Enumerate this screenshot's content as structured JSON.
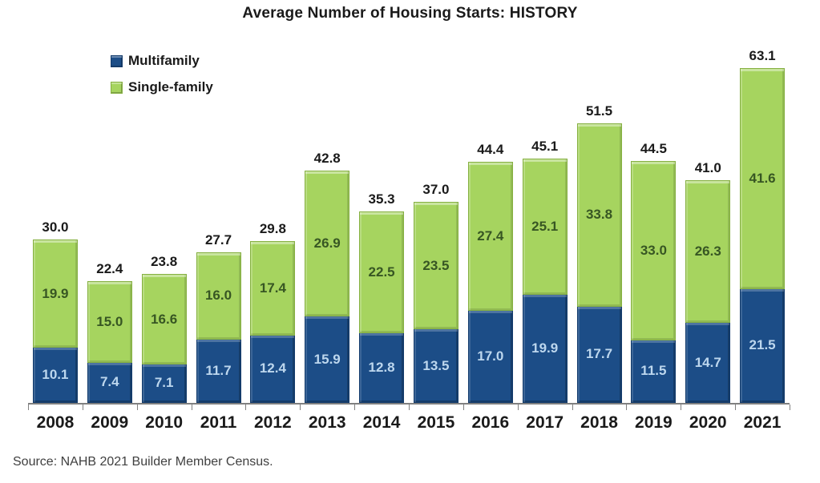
{
  "title": "Average Number of Housing Starts: HISTORY",
  "source_note": "Source: NAHB 2021 Builder Member Census.",
  "legend": {
    "items": [
      {
        "label": "Multifamily"
      },
      {
        "label": "Single-family"
      }
    ]
  },
  "colors": {
    "multifamily": "#1c4d87",
    "multifamily_dark": "#123a6b",
    "multifamily_label": "#bdd7ee",
    "singlefamily": "#a6d45f",
    "singlefamily_dark": "#85b040",
    "singlefamily_label": "#375623",
    "total_label": "#1a1a1a",
    "axis": "#808080",
    "source_text": "#404040"
  },
  "chart_data": {
    "type": "bar",
    "stacked": true,
    "title": "Average Number of Housing Starts: HISTORY",
    "xlabel": "",
    "ylabel": "",
    "grid": false,
    "legend_position": "top-left",
    "ylim": [
      0,
      65.3
    ],
    "categories": [
      "2008",
      "2009",
      "2010",
      "2011",
      "2012",
      "2013",
      "2014",
      "2015",
      "2016",
      "2017",
      "2018",
      "2019",
      "2020",
      "2021"
    ],
    "series": [
      {
        "name": "Multifamily",
        "color": "#1c4d87",
        "values": [
          10.1,
          7.4,
          7.1,
          11.7,
          12.4,
          15.9,
          12.8,
          13.5,
          17.0,
          19.9,
          17.7,
          11.5,
          14.7,
          21.5
        ]
      },
      {
        "name": "Single-family",
        "color": "#a6d45f",
        "values": [
          19.9,
          15.0,
          16.6,
          16.0,
          17.4,
          26.9,
          22.5,
          23.5,
          27.4,
          25.1,
          33.8,
          33.0,
          26.3,
          41.6
        ]
      }
    ],
    "totals": [
      30.0,
      22.4,
      23.8,
      27.7,
      29.8,
      42.8,
      35.3,
      37.0,
      44.4,
      45.1,
      51.5,
      44.5,
      41.0,
      63.1
    ]
  }
}
